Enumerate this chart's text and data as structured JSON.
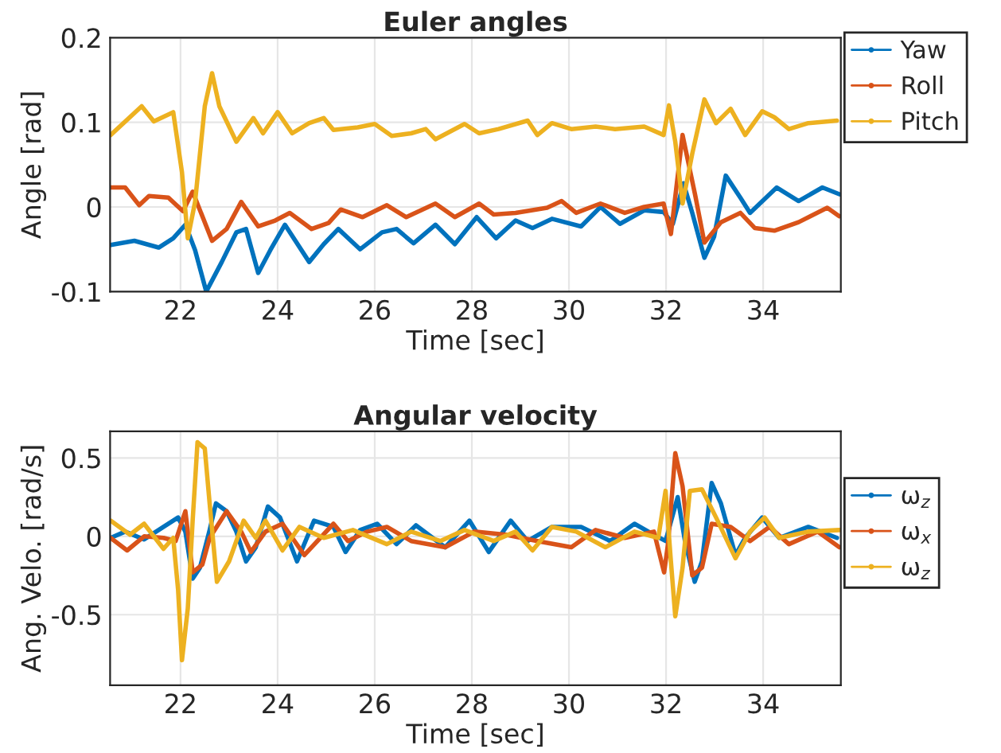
{
  "chart_data": [
    {
      "type": "line",
      "title": "Euler angles",
      "xlabel": "Time [sec]",
      "ylabel": "Angle [rad]",
      "xlim": [
        20.55,
        35.6
      ],
      "xticks": [
        22,
        24,
        26,
        28,
        30,
        32,
        34
      ],
      "ylim": [
        -0.1,
        0.2
      ],
      "yticks": [
        -0.1,
        0,
        0.1,
        0.2
      ],
      "grid": true,
      "legend": "top right",
      "series": [
        {
          "name": "Yaw",
          "color": "#0072bd",
          "x": [
            20.56,
            21.05,
            21.55,
            21.85,
            22.1,
            22.3,
            22.53,
            22.85,
            23.15,
            23.35,
            23.6,
            23.85,
            24.15,
            24.65,
            24.95,
            25.25,
            25.7,
            26.15,
            26.45,
            26.8,
            27.25,
            27.65,
            28.1,
            28.5,
            28.9,
            29.25,
            29.65,
            30.25,
            30.65,
            31.05,
            31.55,
            31.95,
            32.14,
            32.36,
            32.54,
            32.79,
            32.99,
            33.23,
            33.53,
            33.73,
            34.28,
            34.73,
            35.22,
            35.57
          ],
          "values": [
            -0.045,
            -0.04,
            -0.048,
            -0.037,
            -0.021,
            -0.051,
            -0.1,
            -0.065,
            -0.03,
            -0.026,
            -0.078,
            -0.051,
            -0.021,
            -0.065,
            -0.044,
            -0.026,
            -0.05,
            -0.03,
            -0.026,
            -0.043,
            -0.021,
            -0.044,
            -0.012,
            -0.037,
            -0.016,
            -0.025,
            -0.014,
            -0.023,
            0,
            -0.02,
            -0.004,
            -0.006,
            -0.02,
            0.028,
            -0.007,
            -0.06,
            -0.035,
            0.037,
            0.011,
            -0.007,
            0.023,
            0.007,
            0.023,
            0.015
          ]
        },
        {
          "name": "Roll",
          "color": "#d95319",
          "x": [
            20.56,
            20.86,
            21.15,
            21.35,
            21.75,
            22.05,
            22.25,
            22.65,
            22.95,
            23.25,
            23.6,
            23.95,
            24.25,
            24.7,
            25.05,
            25.3,
            25.75,
            26.25,
            26.65,
            27.25,
            27.65,
            28.15,
            28.45,
            28.9,
            29.55,
            29.85,
            30.15,
            30.65,
            31.15,
            31.55,
            31.95,
            32.1,
            32.34,
            32.6,
            32.79,
            33.13,
            33.53,
            33.83,
            34.23,
            34.73,
            35.32,
            35.57
          ],
          "values": [
            0.023,
            0.023,
            0.002,
            0.013,
            0.011,
            -0.005,
            0.018,
            -0.04,
            -0.026,
            0.006,
            -0.023,
            -0.016,
            -0.007,
            -0.026,
            -0.019,
            -0.003,
            -0.012,
            0.002,
            -0.012,
            0.004,
            -0.012,
            0.004,
            -0.009,
            -0.007,
            -0.001,
            0.007,
            -0.007,
            0.004,
            -0.007,
            0,
            0.004,
            -0.032,
            0.085,
            0.014,
            -0.042,
            -0.018,
            -0.007,
            -0.025,
            -0.028,
            -0.018,
            -0.001,
            -0.011
          ]
        },
        {
          "name": "Pitch",
          "color": "#edb120",
          "x": [
            20.56,
            21.2,
            21.45,
            21.85,
            22.03,
            22.15,
            22.3,
            22.5,
            22.65,
            22.8,
            23.15,
            23.5,
            23.7,
            24.0,
            24.3,
            24.65,
            24.95,
            25.15,
            25.65,
            26.0,
            26.35,
            26.75,
            27.05,
            27.25,
            27.85,
            28.15,
            28.55,
            29.15,
            29.35,
            29.65,
            30.05,
            30.55,
            30.95,
            31.55,
            31.95,
            32.06,
            32.19,
            32.34,
            32.54,
            32.79,
            33.03,
            33.33,
            33.63,
            33.98,
            34.23,
            34.53,
            34.93,
            35.52
          ],
          "values": [
            0.085,
            0.119,
            0.101,
            0.112,
            0.041,
            -0.037,
            0.006,
            0.119,
            0.158,
            0.119,
            0.077,
            0.105,
            0.087,
            0.112,
            0.087,
            0.099,
            0.105,
            0.091,
            0.094,
            0.098,
            0.084,
            0.087,
            0.092,
            0.08,
            0.098,
            0.087,
            0.092,
            0.102,
            0.085,
            0.099,
            0.092,
            0.095,
            0.092,
            0.095,
            0.085,
            0.12,
            0.077,
            0.004,
            0.063,
            0.127,
            0.099,
            0.116,
            0.085,
            0.113,
            0.106,
            0.092,
            0.099,
            0.102
          ]
        }
      ]
    },
    {
      "type": "line",
      "title": "Angular velocity",
      "xlabel": "Time [sec]",
      "ylabel": "Ang. Velo. [rad/s]",
      "xlim": [
        20.55,
        35.6
      ],
      "xticks": [
        22,
        24,
        26,
        28,
        30,
        32,
        34
      ],
      "ylim": [
        -0.95,
        0.67
      ],
      "yticks": [
        -0.5,
        0,
        0.5
      ],
      "grid": true,
      "legend": "right",
      "series": [
        {
          "name": "ω$_{z}$",
          "color": "#0072bd",
          "x": [
            20.56,
            20.86,
            21.25,
            21.65,
            21.95,
            22.1,
            22.25,
            22.4,
            22.6,
            22.73,
            22.95,
            23.15,
            23.35,
            23.55,
            23.8,
            24.05,
            24.4,
            24.75,
            25.15,
            25.4,
            25.7,
            26.05,
            26.45,
            26.85,
            27.45,
            27.95,
            28.35,
            28.8,
            29.15,
            29.65,
            30.25,
            30.85,
            31.35,
            31.75,
            31.99,
            32.24,
            32.39,
            32.59,
            32.74,
            32.94,
            33.13,
            33.43,
            33.63,
            33.98,
            34.33,
            34.93,
            35.52
          ],
          "values": [
            -0.01,
            0.03,
            -0.02,
            0.06,
            0.12,
            0.03,
            -0.27,
            -0.2,
            0.04,
            0.21,
            0.16,
            0.03,
            -0.16,
            -0.07,
            0.19,
            0.12,
            -0.16,
            0.1,
            0.06,
            -0.1,
            0.04,
            0.08,
            -0.05,
            0.07,
            -0.07,
            0.1,
            -0.1,
            0.1,
            -0.03,
            0.06,
            0.06,
            -0.03,
            0.08,
            0.01,
            -0.03,
            0.25,
            -0.03,
            -0.29,
            -0.16,
            0.34,
            0.21,
            -0.12,
            -0.01,
            0.12,
            -0.01,
            0.06,
            -0.01
          ]
        },
        {
          "name": "ω$_{x}$",
          "color": "#d95319",
          "x": [
            20.56,
            20.9,
            21.25,
            21.65,
            21.9,
            22.1,
            22.25,
            22.45,
            22.6,
            22.95,
            23.25,
            23.45,
            23.75,
            24.1,
            24.55,
            25.15,
            25.45,
            25.85,
            26.25,
            26.75,
            27.45,
            28.05,
            28.7,
            29.35,
            30.05,
            30.55,
            31.15,
            31.75,
            31.96,
            32.04,
            32.19,
            32.34,
            32.54,
            32.74,
            32.94,
            33.33,
            33.73,
            34.13,
            34.53,
            35.12,
            35.57
          ],
          "values": [
            -0.01,
            -0.09,
            0,
            -0.01,
            -0.03,
            0.16,
            -0.23,
            -0.18,
            -0.01,
            0.16,
            0.03,
            -0.1,
            0.03,
            0.08,
            -0.12,
            0.08,
            -0.03,
            0.03,
            0.06,
            -0.03,
            -0.07,
            0.03,
            0.01,
            -0.03,
            -0.07,
            0.04,
            -0.01,
            0.03,
            -0.23,
            -0.05,
            0.53,
            0.32,
            -0.25,
            -0.2,
            0.08,
            0.06,
            -0.03,
            0.06,
            -0.05,
            0.03,
            -0.07
          ]
        },
        {
          "name": "ω$_{z}$",
          "color": "#edb120",
          "x": [
            20.56,
            20.96,
            21.25,
            21.65,
            21.85,
            21.95,
            22.03,
            22.15,
            22.25,
            22.35,
            22.5,
            22.6,
            22.75,
            23.0,
            23.3,
            23.55,
            23.75,
            24.1,
            24.45,
            24.95,
            25.55,
            26.25,
            26.75,
            27.35,
            27.85,
            28.45,
            28.9,
            29.25,
            29.65,
            30.15,
            30.75,
            31.35,
            31.84,
            31.99,
            32.1,
            32.19,
            32.34,
            32.49,
            32.74,
            33.03,
            33.43,
            33.73,
            34.03,
            34.33,
            34.93,
            35.57
          ],
          "values": [
            0.1,
            0.01,
            0.08,
            -0.08,
            -0.01,
            -0.34,
            -0.79,
            -0.46,
            0.1,
            0.6,
            0.56,
            0.21,
            -0.29,
            -0.16,
            0.1,
            -0.01,
            0.1,
            -0.09,
            0.06,
            -0.01,
            0.04,
            -0.05,
            0.03,
            -0.03,
            0.04,
            -0.03,
            0.03,
            -0.09,
            0.06,
            0.03,
            -0.07,
            0.03,
            -0.01,
            0.29,
            -0.16,
            -0.51,
            -0.2,
            0.29,
            0.3,
            0.12,
            -0.14,
            0.03,
            0.12,
            -0.01,
            0.03,
            0.04
          ]
        }
      ]
    }
  ]
}
